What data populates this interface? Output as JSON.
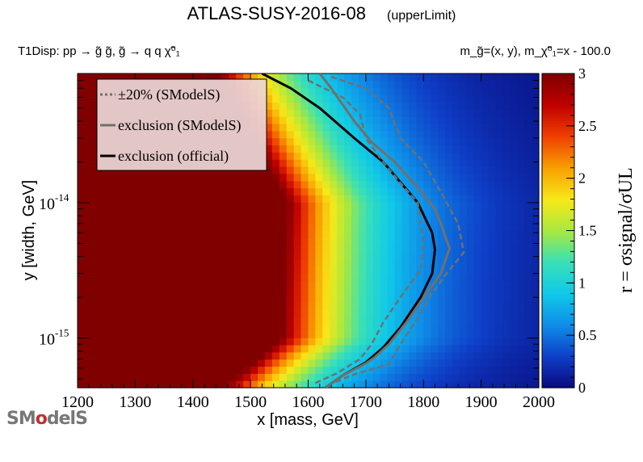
{
  "header": {
    "title": "ATLAS-SUSY-2016-08",
    "subtitle": "(upperLimit)",
    "process": "T1Disp: pp  → g̃ g̃, g̃  → q q χ̃⁰₁",
    "mass_relation": "m_g̃=(x, y), m_χ̃⁰₁=x - 100.0"
  },
  "logo": {
    "text_a": "SM",
    "text_o": "o",
    "text_b": "delS"
  },
  "chart_data": {
    "type": "heatmap",
    "title": "ATLAS-SUSY-2016-08 (upperLimit)",
    "xlabel": "x [mass, GeV]",
    "ylabel": "y [width, GeV]",
    "zlabel": "r = σsignal/σUL",
    "xlim": [
      1200,
      2000
    ],
    "ylim": [
      4.3e-16,
      9e-14
    ],
    "y_scale": "log",
    "zlim": [
      0,
      3
    ],
    "x_ticks": [
      1200,
      1300,
      1400,
      1500,
      1600,
      1700,
      1800,
      1900,
      2000
    ],
    "y_ticks": [
      {
        "value": 1e-15,
        "label_base": "10",
        "label_exp": "-15"
      },
      {
        "value": 1e-14,
        "label_base": "10",
        "label_exp": "-14"
      }
    ],
    "z_ticks": [
      0,
      0.5,
      1,
      1.5,
      2,
      2.5,
      3
    ],
    "colormap": [
      "#0a0a7e",
      "#0e3fc8",
      "#0e8de8",
      "#10c8e8",
      "#38e0b8",
      "#a8e840",
      "#f8e818",
      "#f8a000",
      "#f04000",
      "#c00000",
      "#800000"
    ],
    "r1_boundary": {
      "y": [
        4.3e-16,
        1e-15,
        1e-14,
        9e-14
      ],
      "x": [
        1620,
        1720,
        1730,
        1610
      ]
    },
    "legend": {
      "placement": "top-left",
      "entries": [
        {
          "label": "±20% (SModelS)",
          "style": "dotted",
          "color": "#707070"
        },
        {
          "label": "exclusion (SModelS)",
          "style": "solid",
          "color": "#707070"
        },
        {
          "label": "exclusion (official)",
          "style": "solid",
          "color": "#000000"
        }
      ]
    },
    "series": [
      {
        "name": "exclusion (official)",
        "color": "#000000",
        "points": [
          [
            1520,
            9e-14
          ],
          [
            1570,
            7e-14
          ],
          [
            1620,
            5e-14
          ],
          [
            1680,
            3e-14
          ],
          [
            1730,
            2e-14
          ],
          [
            1790,
            1e-14
          ],
          [
            1815,
            6e-15
          ],
          [
            1820,
            4.5e-15
          ],
          [
            1815,
            3e-15
          ],
          [
            1795,
            2e-15
          ],
          [
            1760,
            1.2e-15
          ],
          [
            1730,
            8.5e-16
          ],
          [
            1700,
            6.6e-16
          ],
          [
            1660,
            5.3e-16
          ],
          [
            1630,
            4.3e-16
          ]
        ]
      },
      {
        "name": "exclusion (SModelS)",
        "color": "#707070",
        "points": [
          [
            1620,
            9e-14
          ],
          [
            1640,
            7e-14
          ],
          [
            1680,
            4e-14
          ],
          [
            1710,
            2.8e-14
          ],
          [
            1750,
            2e-14
          ],
          [
            1790,
            1.3e-14
          ],
          [
            1820,
            9e-15
          ],
          [
            1830,
            7e-15
          ],
          [
            1845,
            4.6e-15
          ],
          [
            1830,
            3e-15
          ],
          [
            1800,
            2e-15
          ],
          [
            1770,
            1.3e-15
          ],
          [
            1740,
            9e-16
          ],
          [
            1715,
            7.2e-16
          ],
          [
            1700,
            6.5e-16
          ],
          [
            1660,
            5.3e-16
          ],
          [
            1630,
            4.3e-16
          ]
        ]
      },
      {
        "name": "-20% (SModelS)",
        "color": "#707070",
        "points": [
          [
            1600,
            8e-14
          ],
          [
            1660,
            6e-14
          ],
          [
            1690,
            4.5e-14
          ],
          [
            1700,
            3e-14
          ],
          [
            1730,
            2e-14
          ],
          [
            1760,
            1.4e-14
          ],
          [
            1790,
            1e-14
          ],
          [
            1800,
            5e-15
          ],
          [
            1795,
            3.2e-15
          ],
          [
            1760,
            2e-15
          ],
          [
            1730,
            1.3e-15
          ],
          [
            1710,
            9e-16
          ],
          [
            1690,
            7e-16
          ],
          [
            1650,
            5.5e-16
          ],
          [
            1610,
            4.6e-16
          ]
        ]
      },
      {
        "name": "+20% (SModelS)",
        "color": "#707070",
        "points": [
          [
            1640,
            8.5e-14
          ],
          [
            1700,
            7e-14
          ],
          [
            1740,
            5e-14
          ],
          [
            1760,
            3e-14
          ],
          [
            1800,
            2e-14
          ],
          [
            1830,
            1.2e-14
          ],
          [
            1860,
            7e-15
          ],
          [
            1870,
            4.3e-15
          ],
          [
            1840,
            3e-15
          ],
          [
            1810,
            2e-15
          ],
          [
            1790,
            1.4e-15
          ],
          [
            1760,
            9e-16
          ],
          [
            1740,
            6.4e-16
          ],
          [
            1680,
            5.4e-16
          ],
          [
            1640,
            4.6e-16
          ]
        ]
      }
    ]
  }
}
